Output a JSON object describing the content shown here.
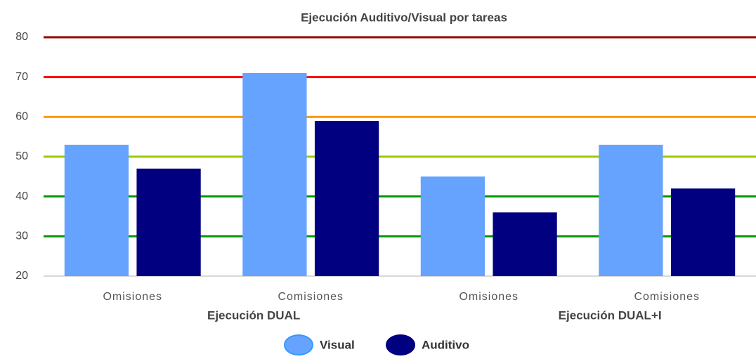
{
  "chart_data": {
    "type": "bar",
    "title": "Ejecución Auditivo/Visual por tareas",
    "categories": [
      "Omisiones",
      "Comisiones",
      "Omisiones",
      "Comisiones"
    ],
    "groups": [
      "Ejecución DUAL",
      "Ejecución DUAL+I"
    ],
    "series": [
      {
        "name": "Visual",
        "color": "#66a3ff",
        "values": [
          53,
          71,
          45,
          53
        ]
      },
      {
        "name": "Auditivo",
        "color": "#000080",
        "values": [
          47,
          59,
          36,
          42
        ]
      }
    ],
    "ylim": [
      20,
      80
    ],
    "yticks": [
      20,
      30,
      40,
      50,
      60,
      70,
      80
    ],
    "grid": true,
    "grid_colors": [
      "#cccccc",
      "#009900",
      "#009900",
      "#99cc00",
      "#ff9900",
      "#ff0000",
      "#990000"
    ],
    "legend": "bottom"
  }
}
